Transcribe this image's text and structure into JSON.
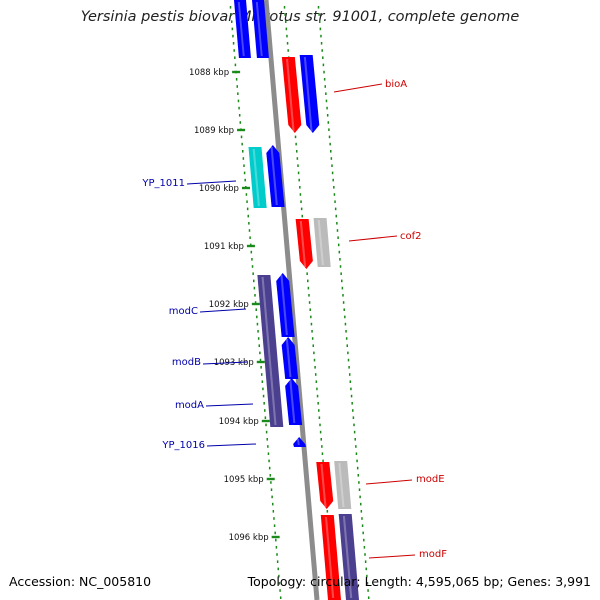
{
  "title": "Yersinia pestis biovar Microtus str. 91001, complete genome",
  "accession_label": "Accession: NC_005810",
  "topology_label": "Topology: circular; Length: 4,595,065 bp; Genes: 3,991",
  "colors": {
    "forward_gene": "#0000ff",
    "reverse_gene": "#ff0000",
    "cyan_gene": "#00cccc",
    "purple_gene": "#4b3f8f",
    "gray_gene": "#bbbbbb",
    "backbone": "#8c8c8c",
    "tick_green": "#1a8a1a",
    "label_blue": "#0000aa",
    "label_red": "#cc0000"
  },
  "scale_ticks": [
    "1088 kbp",
    "1089 kbp",
    "1090 kbp",
    "1091 kbp",
    "1092 kbp",
    "1093 kbp",
    "1094 kbp",
    "1095 kbp",
    "1096 kbp"
  ],
  "gene_labels": [
    {
      "id": "bioA",
      "text": "bioA",
      "color": "red"
    },
    {
      "id": "YP_1011",
      "text": "YP_1011",
      "color": "blue"
    },
    {
      "id": "cof2",
      "text": "cof2",
      "color": "red"
    },
    {
      "id": "modC",
      "text": "modC",
      "color": "blue"
    },
    {
      "id": "modB",
      "text": "modB",
      "color": "blue"
    },
    {
      "id": "modA",
      "text": "modA",
      "color": "blue"
    },
    {
      "id": "YP_1016",
      "text": "YP_1016",
      "color": "blue"
    },
    {
      "id": "modE",
      "text": "modE",
      "color": "red"
    },
    {
      "id": "modF",
      "text": "modF",
      "color": "red"
    }
  ]
}
